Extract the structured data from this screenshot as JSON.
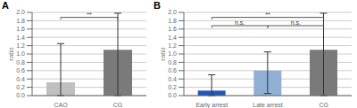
{
  "chart_data": [
    {
      "type": "bar",
      "title": "A",
      "ylabel": "ratio",
      "categories": [
        "CAO",
        "CG"
      ],
      "values": [
        0.32,
        1.1
      ],
      "err_up": [
        0.93,
        0.88
      ],
      "err_dn": [
        0.32,
        1.1
      ],
      "colors": [
        "#c0c0c0",
        "#7a7a7a"
      ],
      "ylim": [
        0,
        2.0
      ],
      "yticks": [
        {
          "value": 0,
          "label": "0.0"
        },
        0.2,
        0.4,
        0.6,
        0.8,
        {
          "value": 1.0,
          "label": "1.0"
        },
        1.2,
        1.4,
        1.6,
        1.8,
        {
          "value": 2.0,
          "label": "2.0"
        }
      ],
      "grid": true,
      "annotations": [
        {
          "text": "**",
          "from": "CAO",
          "to": "CG"
        }
      ]
    },
    {
      "type": "bar",
      "title": "B",
      "ylabel": "ratio",
      "categories": [
        "Early arrest",
        "Late arrest",
        "CG"
      ],
      "values": [
        0.12,
        0.6,
        1.1
      ],
      "err_up": [
        0.38,
        0.45,
        0.88
      ],
      "err_dn": [
        0.12,
        0.55,
        1.1
      ],
      "colors": [
        "#2255bb",
        "#8fafd4",
        "#7a7a7a"
      ],
      "ylim": [
        0,
        2.0
      ],
      "yticks": [
        {
          "value": 0,
          "label": "0.0"
        },
        0.2,
        0.4,
        0.6,
        0.8,
        {
          "value": 1.0,
          "label": "1.0"
        },
        1.2,
        1.4,
        1.6,
        1.8,
        {
          "value": 2.0,
          "label": "2.0"
        }
      ],
      "grid": true,
      "annotations": [
        {
          "text": "**",
          "from": "Early arrest",
          "to": "CG"
        },
        {
          "text": "n.s.",
          "from": "Early arrest",
          "to": "Late arrest"
        },
        {
          "text": "n.s.",
          "from": "Late arrest",
          "to": "CG"
        }
      ]
    }
  ]
}
